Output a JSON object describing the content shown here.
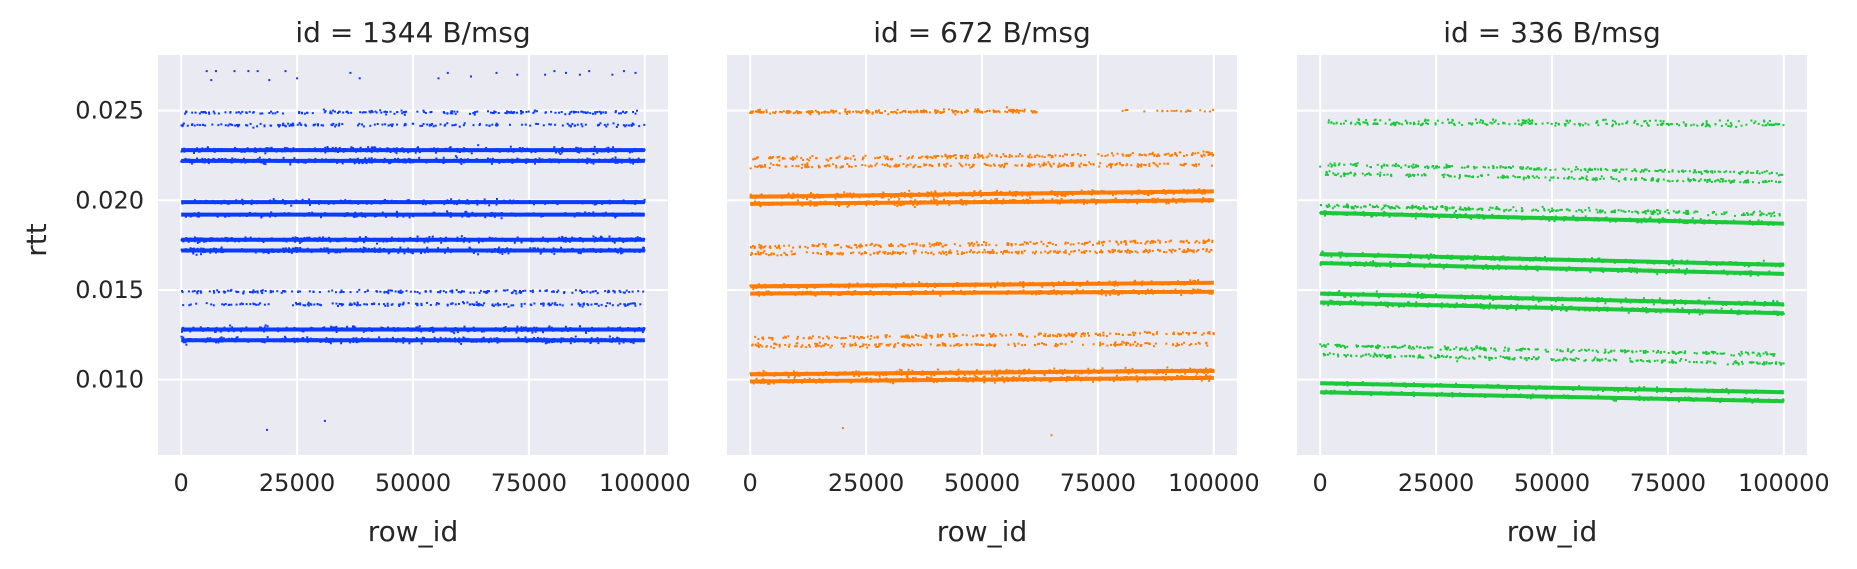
{
  "chart_data": {
    "type": "scatter",
    "ylabel": "rtt",
    "xlabel": "row_id",
    "sharey": true,
    "grid": true,
    "xlim": [
      -5000,
      105000
    ],
    "ylim": [
      0.0058,
      0.0281
    ],
    "xticks": [
      0,
      25000,
      50000,
      75000,
      100000
    ],
    "xtick_labels": [
      "0",
      "25000",
      "50000",
      "75000",
      "100000"
    ],
    "yticks": [
      0.01,
      0.015,
      0.02,
      0.025
    ],
    "ytick_labels": [
      "0.010",
      "0.015",
      "0.020",
      "0.025"
    ],
    "panels": [
      {
        "title": "id = 1344 B/msg",
        "color": "#0b3bff",
        "bands": [
          {
            "y0": 0.0122,
            "y1": 0.0122,
            "spread": 0.00012,
            "count": 420
          },
          {
            "y0": 0.0128,
            "y1": 0.0128,
            "spread": 0.00012,
            "count": 380
          },
          {
            "y0": 0.0142,
            "y1": 0.0142,
            "spread": 8e-05,
            "count": 190
          },
          {
            "y0": 0.0149,
            "y1": 0.0149,
            "spread": 8e-05,
            "count": 190
          },
          {
            "y0": 0.0172,
            "y1": 0.0172,
            "spread": 0.00012,
            "count": 420
          },
          {
            "y0": 0.0178,
            "y1": 0.0178,
            "spread": 0.00012,
            "count": 420
          },
          {
            "y0": 0.0192,
            "y1": 0.0192,
            "spread": 0.0001,
            "count": 330
          },
          {
            "y0": 0.0199,
            "y1": 0.0199,
            "spread": 0.0001,
            "count": 330
          },
          {
            "y0": 0.0222,
            "y1": 0.0222,
            "spread": 0.00012,
            "count": 420
          },
          {
            "y0": 0.0228,
            "y1": 0.0228,
            "spread": 0.00012,
            "count": 420
          },
          {
            "y0": 0.0242,
            "y1": 0.0242,
            "spread": 8e-05,
            "count": 170
          },
          {
            "y0": 0.0249,
            "y1": 0.0249,
            "spread": 8e-05,
            "count": 190
          }
        ],
        "outliers": [
          {
            "x": 5500,
            "y": 0.0272
          },
          {
            "x": 6500,
            "y": 0.0267
          },
          {
            "x": 7500,
            "y": 0.0272
          },
          {
            "x": 11500,
            "y": 0.0272
          },
          {
            "x": 14500,
            "y": 0.0272
          },
          {
            "x": 16500,
            "y": 0.0272
          },
          {
            "x": 19000,
            "y": 0.0267
          },
          {
            "x": 22500,
            "y": 0.0272
          },
          {
            "x": 25000,
            "y": 0.0268
          },
          {
            "x": 36500,
            "y": 0.0271
          },
          {
            "x": 38500,
            "y": 0.0268
          },
          {
            "x": 55500,
            "y": 0.0268
          },
          {
            "x": 57500,
            "y": 0.0271
          },
          {
            "x": 62500,
            "y": 0.0269
          },
          {
            "x": 68000,
            "y": 0.0271
          },
          {
            "x": 72500,
            "y": 0.027
          },
          {
            "x": 78500,
            "y": 0.027
          },
          {
            "x": 80500,
            "y": 0.0272
          },
          {
            "x": 83000,
            "y": 0.0271
          },
          {
            "x": 86000,
            "y": 0.027
          },
          {
            "x": 88000,
            "y": 0.0272
          },
          {
            "x": 93000,
            "y": 0.027
          },
          {
            "x": 95500,
            "y": 0.0272
          },
          {
            "x": 98000,
            "y": 0.0271
          },
          {
            "x": 18500,
            "y": 0.0072
          },
          {
            "x": 31000,
            "y": 0.0077
          }
        ]
      },
      {
        "title": "id = 672 B/msg",
        "color": "#ff7c00",
        "bands": [
          {
            "y0": 0.0099,
            "y1": 0.0101,
            "spread": 0.00012,
            "count": 430
          },
          {
            "y0": 0.0103,
            "y1": 0.0105,
            "spread": 0.00012,
            "count": 380
          },
          {
            "y0": 0.0119,
            "y1": 0.012,
            "spread": 9e-05,
            "count": 220
          },
          {
            "y0": 0.0123,
            "y1": 0.0126,
            "spread": 9e-05,
            "count": 220
          },
          {
            "y0": 0.0148,
            "y1": 0.0149,
            "spread": 0.0001,
            "count": 380
          },
          {
            "y0": 0.0152,
            "y1": 0.0154,
            "spread": 0.0001,
            "count": 340
          },
          {
            "y0": 0.017,
            "y1": 0.0172,
            "spread": 9e-05,
            "count": 260
          },
          {
            "y0": 0.0174,
            "y1": 0.0177,
            "spread": 9e-05,
            "count": 240
          },
          {
            "y0": 0.0198,
            "y1": 0.02,
            "spread": 0.00012,
            "count": 430
          },
          {
            "y0": 0.0202,
            "y1": 0.0205,
            "spread": 0.00012,
            "count": 400
          },
          {
            "y0": 0.0219,
            "y1": 0.022,
            "spread": 9e-05,
            "count": 230
          },
          {
            "y0": 0.0223,
            "y1": 0.0226,
            "spread": 9e-05,
            "count": 230
          },
          {
            "y0": 0.0249,
            "y1": 0.025,
            "spread": 9e-05,
            "count": 240,
            "xmax": 62000
          },
          {
            "y0": 0.025,
            "y1": 0.025,
            "spread": 5e-05,
            "count": 20,
            "xmin": 80000
          }
        ],
        "outliers": [
          {
            "x": 20000,
            "y": 0.0073
          },
          {
            "x": 65000,
            "y": 0.0069
          }
        ]
      },
      {
        "title": "id = 336 B/msg",
        "color": "#1ac938",
        "bands": [
          {
            "y0": 0.0093,
            "y1": 0.0088,
            "spread": 9e-05,
            "count": 330
          },
          {
            "y0": 0.0098,
            "y1": 0.0093,
            "spread": 9e-05,
            "count": 300
          },
          {
            "y0": 0.0114,
            "y1": 0.0109,
            "spread": 8e-05,
            "count": 240
          },
          {
            "y0": 0.0119,
            "y1": 0.0114,
            "spread": 8e-05,
            "count": 240
          },
          {
            "y0": 0.0143,
            "y1": 0.0137,
            "spread": 0.00011,
            "count": 400
          },
          {
            "y0": 0.0148,
            "y1": 0.0142,
            "spread": 0.00011,
            "count": 360
          },
          {
            "y0": 0.0165,
            "y1": 0.0159,
            "spread": 0.0001,
            "count": 360
          },
          {
            "y0": 0.017,
            "y1": 0.0164,
            "spread": 0.0001,
            "count": 340
          },
          {
            "y0": 0.0193,
            "y1": 0.0187,
            "spread": 0.00011,
            "count": 380
          },
          {
            "y0": 0.0197,
            "y1": 0.0192,
            "spread": 9e-05,
            "count": 280
          },
          {
            "y0": 0.0215,
            "y1": 0.021,
            "spread": 8e-05,
            "count": 230
          },
          {
            "y0": 0.022,
            "y1": 0.0215,
            "spread": 8e-05,
            "count": 230
          },
          {
            "y0": 0.0243,
            "y1": 0.0242,
            "spread": 8e-05,
            "count": 200
          },
          {
            "y0": 0.0245,
            "y1": 0.0244,
            "spread": 5e-05,
            "count": 60
          }
        ],
        "outliers": []
      }
    ]
  }
}
